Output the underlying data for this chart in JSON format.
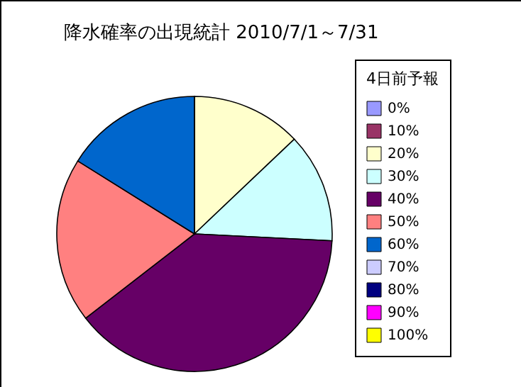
{
  "chart_data": {
    "type": "pie",
    "title": "降水確率の出現統計 2010/7/1～7/31",
    "legend_title": "4日前予報",
    "legend": "right",
    "categories": [
      "0%",
      "10%",
      "20%",
      "30%",
      "40%",
      "50%",
      "60%",
      "70%",
      "80%",
      "90%",
      "100%"
    ],
    "values": [
      0,
      0,
      12.9,
      12.9,
      38.7,
      19.4,
      16.1,
      0,
      0,
      0,
      0
    ],
    "colors": [
      "#9999ff",
      "#993366",
      "#ffffcc",
      "#ccffff",
      "#660066",
      "#ff8080",
      "#0066cc",
      "#ccccff",
      "#000080",
      "#ff00ff",
      "#ffff00"
    ]
  }
}
